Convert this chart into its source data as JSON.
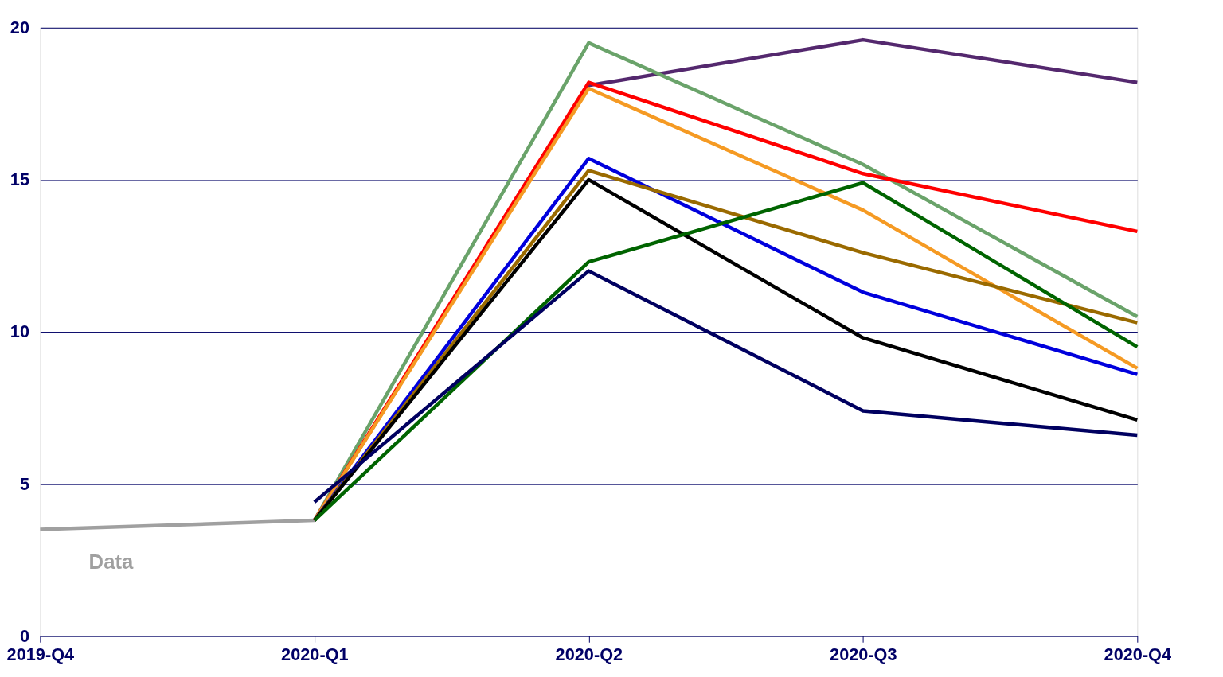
{
  "chart_data": {
    "type": "line",
    "categories": [
      "2019-Q4",
      "2020-Q1",
      "2020-Q2",
      "2020-Q3",
      "2020-Q4"
    ],
    "ylim": [
      0,
      20
    ],
    "yticks": [
      0,
      5,
      10,
      15,
      20
    ],
    "grid": "y",
    "line_style": "solid",
    "marker": "none",
    "series": [
      {
        "name": "Data",
        "color": "#a0a0a0",
        "values": [
          3.5,
          3.8,
          null,
          null,
          null
        ]
      },
      {
        "color": "#54286e",
        "values": [
          null,
          3.8,
          18.1,
          19.6,
          18.2
        ]
      },
      {
        "color": "#6aa36a",
        "values": [
          null,
          3.8,
          19.5,
          15.5,
          10.5
        ]
      },
      {
        "color": "#ff0000",
        "values": [
          null,
          3.8,
          18.2,
          15.2,
          13.3
        ]
      },
      {
        "color": "#f59a23",
        "values": [
          null,
          3.8,
          18.0,
          14.0,
          8.8
        ]
      },
      {
        "color": "#0000dd",
        "values": [
          null,
          3.8,
          15.7,
          11.3,
          8.6
        ]
      },
      {
        "color": "#9a6a00",
        "values": [
          null,
          3.8,
          15.3,
          12.6,
          10.3
        ]
      },
      {
        "color": "#000000",
        "values": [
          null,
          3.8,
          15.0,
          9.8,
          7.1
        ]
      },
      {
        "color": "#006400",
        "values": [
          null,
          3.8,
          12.3,
          14.9,
          9.5
        ]
      },
      {
        "color": "#000060",
        "values": [
          null,
          4.4,
          12.0,
          7.4,
          6.6
        ]
      }
    ]
  }
}
